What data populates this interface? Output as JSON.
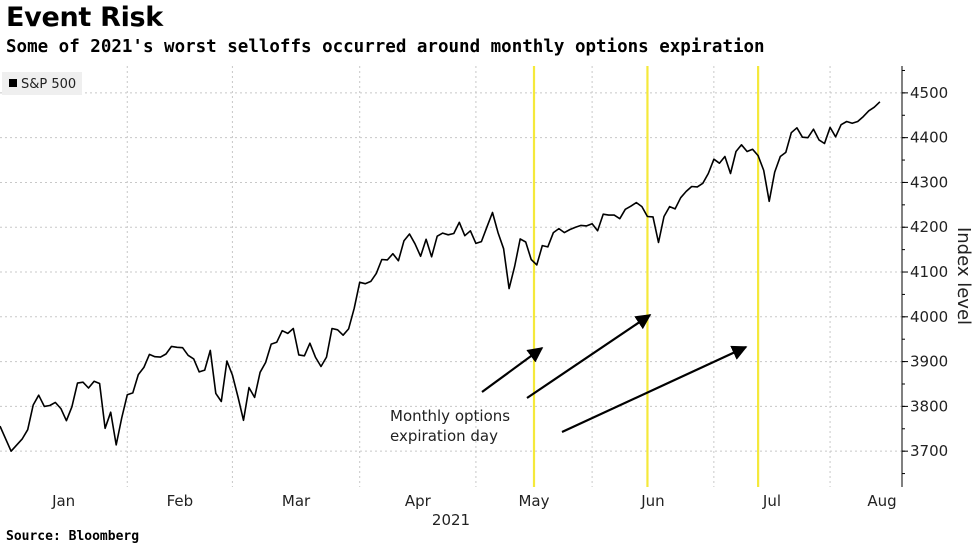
{
  "title": "Event Risk",
  "subtitle": "Some of 2021's worst selloffs occurred around monthly options expiration",
  "source": "Source: Bloomberg",
  "chart_data": {
    "type": "line",
    "x_axis_label": "2021",
    "ylabel": "Index level",
    "ylim": [
      3620,
      4560
    ],
    "y_ticks": [
      3700,
      3800,
      3900,
      4000,
      4100,
      4200,
      4300,
      4400,
      4500
    ],
    "x_ticks": [
      "Jan",
      "Feb",
      "Mar",
      "Apr",
      "May",
      "Jun",
      "Jul",
      "Aug"
    ],
    "legend": [
      "S&P 500"
    ],
    "grid": true,
    "colors": {
      "line": "#000000",
      "highlight": "#f5e93a",
      "grid": "#c8c8c8",
      "legend_bg": "#efefef"
    },
    "expiration_days": [
      {
        "label": "May 21",
        "day": 140
      },
      {
        "label": "Jun 18",
        "day": 168
      },
      {
        "label": "Jul 16",
        "day": 196
      }
    ],
    "annotation": "Monthly options\nexpiration day",
    "series": [
      {
        "name": "S&P 500",
        "values": [
          [
            0,
            3756
          ],
          [
            2,
            3700
          ],
          [
            4,
            3727
          ],
          [
            5,
            3748
          ],
          [
            6,
            3803
          ],
          [
            7,
            3825
          ],
          [
            8,
            3800
          ],
          [
            9,
            3802
          ],
          [
            10,
            3809
          ],
          [
            11,
            3795
          ],
          [
            12,
            3768
          ],
          [
            13,
            3799
          ],
          [
            14,
            3852
          ],
          [
            15,
            3854
          ],
          [
            16,
            3841
          ],
          [
            17,
            3856
          ],
          [
            18,
            3851
          ],
          [
            19,
            3751
          ],
          [
            20,
            3787
          ],
          [
            21,
            3714
          ],
          [
            22,
            3774
          ],
          [
            23,
            3826
          ],
          [
            24,
            3830
          ],
          [
            25,
            3871
          ],
          [
            26,
            3887
          ],
          [
            27,
            3916
          ],
          [
            28,
            3911
          ],
          [
            29,
            3910
          ],
          [
            30,
            3917
          ],
          [
            31,
            3934
          ],
          [
            32,
            3932
          ],
          [
            33,
            3931
          ],
          [
            34,
            3914
          ],
          [
            35,
            3906
          ],
          [
            36,
            3877
          ],
          [
            37,
            3881
          ],
          [
            38,
            3925
          ],
          [
            39,
            3829
          ],
          [
            40,
            3811
          ],
          [
            41,
            3901
          ],
          [
            42,
            3870
          ],
          [
            43,
            3821
          ],
          [
            44,
            3769
          ],
          [
            45,
            3842
          ],
          [
            46,
            3820
          ],
          [
            47,
            3876
          ],
          [
            48,
            3898
          ],
          [
            49,
            3939
          ],
          [
            50,
            3943
          ],
          [
            51,
            3969
          ],
          [
            52,
            3963
          ],
          [
            53,
            3974
          ],
          [
            54,
            3915
          ],
          [
            55,
            3913
          ],
          [
            56,
            3941
          ],
          [
            57,
            3910
          ],
          [
            58,
            3889
          ],
          [
            59,
            3910
          ],
          [
            60,
            3974
          ],
          [
            61,
            3971
          ],
          [
            62,
            3959
          ],
          [
            63,
            3973
          ],
          [
            64,
            4019
          ],
          [
            65,
            4077
          ],
          [
            66,
            4074
          ],
          [
            67,
            4079
          ],
          [
            68,
            4097
          ],
          [
            69,
            4128
          ],
          [
            70,
            4127
          ],
          [
            71,
            4141
          ],
          [
            72,
            4125
          ],
          [
            73,
            4170
          ],
          [
            74,
            4185
          ],
          [
            75,
            4163
          ],
          [
            76,
            4135
          ],
          [
            77,
            4173
          ],
          [
            78,
            4134
          ],
          [
            79,
            4180
          ],
          [
            80,
            4187
          ],
          [
            81,
            4183
          ],
          [
            82,
            4186
          ],
          [
            83,
            4211
          ],
          [
            84,
            4181
          ],
          [
            85,
            4192
          ],
          [
            86,
            4164
          ],
          [
            87,
            4168
          ],
          [
            88,
            4201
          ],
          [
            89,
            4233
          ],
          [
            90,
            4188
          ],
          [
            91,
            4152
          ],
          [
            92,
            4063
          ],
          [
            93,
            4112
          ],
          [
            94,
            4174
          ],
          [
            95,
            4167
          ],
          [
            96,
            4128
          ],
          [
            97,
            4116
          ],
          [
            98,
            4159
          ],
          [
            99,
            4156
          ],
          [
            100,
            4188
          ],
          [
            101,
            4197
          ],
          [
            102,
            4188
          ],
          [
            103,
            4195
          ],
          [
            104,
            4200
          ],
          [
            105,
            4204
          ],
          [
            106,
            4203
          ],
          [
            107,
            4208
          ],
          [
            108,
            4192
          ],
          [
            109,
            4229
          ],
          [
            110,
            4227
          ],
          [
            111,
            4227
          ],
          [
            112,
            4219
          ],
          [
            113,
            4240
          ],
          [
            114,
            4247
          ],
          [
            115,
            4255
          ],
          [
            116,
            4246
          ],
          [
            117,
            4224
          ],
          [
            118,
            4223
          ],
          [
            119,
            4166
          ],
          [
            120,
            4224
          ],
          [
            121,
            4246
          ],
          [
            122,
            4241
          ],
          [
            123,
            4266
          ],
          [
            124,
            4280
          ],
          [
            125,
            4291
          ],
          [
            126,
            4290
          ],
          [
            127,
            4298
          ],
          [
            128,
            4320
          ],
          [
            129,
            4352
          ],
          [
            130,
            4343
          ],
          [
            131,
            4358
          ],
          [
            132,
            4320
          ],
          [
            133,
            4369
          ],
          [
            134,
            4384
          ],
          [
            135,
            4369
          ],
          [
            136,
            4374
          ],
          [
            137,
            4360
          ],
          [
            138,
            4327
          ],
          [
            139,
            4258
          ],
          [
            140,
            4323
          ],
          [
            141,
            4358
          ],
          [
            142,
            4367
          ],
          [
            143,
            4411
          ],
          [
            144,
            4422
          ],
          [
            145,
            4401
          ],
          [
            146,
            4400
          ],
          [
            147,
            4419
          ],
          [
            148,
            4395
          ],
          [
            149,
            4387
          ],
          [
            150,
            4423
          ],
          [
            151,
            4402
          ],
          [
            152,
            4429
          ],
          [
            153,
            4436
          ],
          [
            154,
            4432
          ],
          [
            155,
            4436
          ],
          [
            156,
            4447
          ],
          [
            157,
            4460
          ],
          [
            158,
            4468
          ],
          [
            159,
            4480
          ]
        ]
      }
    ]
  }
}
